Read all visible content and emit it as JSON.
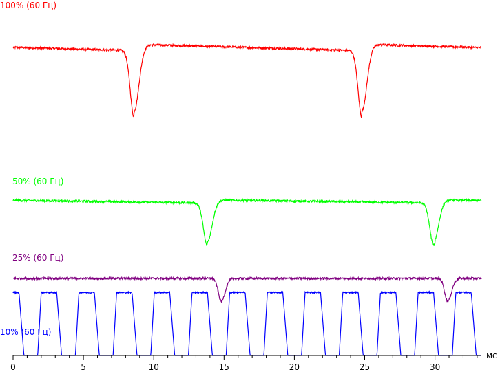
{
  "chart_data": {
    "type": "line",
    "title": "",
    "xlabel": "",
    "ylabel": "",
    "x_unit": "мс",
    "xlim": [
      0,
      33.3
    ],
    "xticks": [
      0,
      5,
      10,
      15,
      20,
      25,
      30
    ],
    "grid": false,
    "series": [
      {
        "name": "100% (60 Гц)",
        "color": "#ff0000",
        "baseline_level": 0.88,
        "dip_times_ms": [
          8.6,
          24.8
        ],
        "dip_depth": 0.78,
        "dip_width_ms": 0.9,
        "drift": 0.06
      },
      {
        "name": "50% (60 Гц)",
        "color": "#00ff00",
        "baseline_level": 0.44,
        "dip_times_ms": [
          13.8,
          29.9
        ],
        "dip_depth": 0.48,
        "dip_width_ms": 0.9,
        "drift": 0.03
      },
      {
        "name": "25% (60 Гц)",
        "color": "#800080",
        "baseline_level": 0.22,
        "dip_times_ms": [
          14.8,
          30.9
        ],
        "dip_depth": 0.25,
        "dip_width_ms": 0.7,
        "drift": 0.0
      },
      {
        "name": "10% (60 Гц)",
        "color": "#0000ff",
        "on_level": 0.18,
        "off_level": 0.0,
        "pwm_period_ms": 2.68,
        "pwm_on_ms": 1.35,
        "pwm_first_rise_ms": 1.75
      }
    ]
  }
}
